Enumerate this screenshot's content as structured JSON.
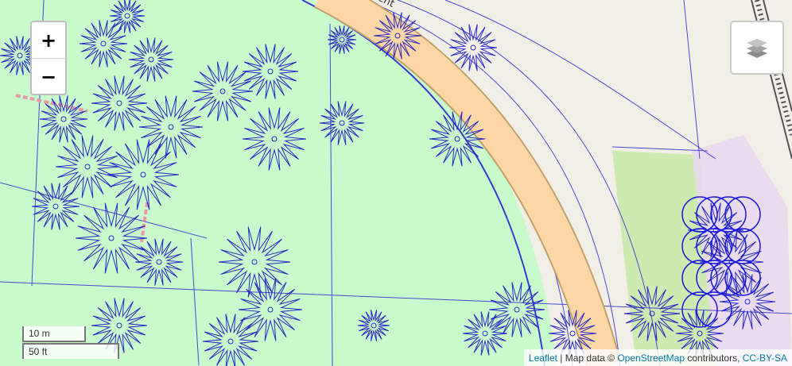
{
  "map": {
    "street_label": "Crescent",
    "colors": {
      "background": "#f2efe9",
      "park": "#c8facc",
      "grass": "#cdebb0",
      "pink_area": "#e9d8ee",
      "road_fill": "#fcd6a4",
      "road_casing": "#c2a06a",
      "tree_outline": "#2a2ac8",
      "railway": "#555555"
    }
  },
  "controls": {
    "zoom_in_label": "+",
    "zoom_out_label": "−",
    "layers_icon": "layers-icon"
  },
  "scale": {
    "metric": "10 m",
    "imperial": "50 ft"
  },
  "attribution": {
    "leaflet": "Leaflet",
    "separator": "| Map data ©",
    "osm": "OpenStreetMap",
    "contributors": "contributors,",
    "license": "CC-BY-SA"
  }
}
